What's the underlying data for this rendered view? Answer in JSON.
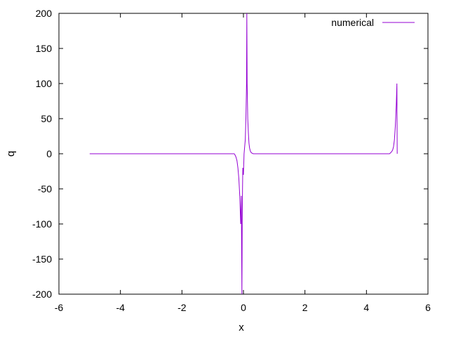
{
  "chart_data": {
    "type": "line",
    "xlabel": "x",
    "ylabel": "q",
    "xlim": [
      -6,
      6
    ],
    "ylim": [
      -200,
      200
    ],
    "x_ticks": [
      -6,
      -4,
      -2,
      0,
      2,
      4,
      6
    ],
    "y_ticks": [
      -200,
      -150,
      -100,
      -50,
      0,
      50,
      100,
      150,
      200
    ],
    "x_tick_labels": [
      "-6",
      "-4",
      "-2",
      "0",
      "2",
      "4",
      "6"
    ],
    "y_tick_labels": [
      "-200",
      "-150",
      "-100",
      "-50",
      "0",
      "50",
      "100",
      "150",
      "200"
    ],
    "grid": false,
    "legend_position": "top-right",
    "series": [
      {
        "name": "numerical",
        "color": "#9400D3",
        "points": [
          [
            -5.0,
            0
          ],
          [
            -0.3,
            0
          ],
          [
            -0.27,
            -2
          ],
          [
            -0.24,
            -5
          ],
          [
            -0.21,
            -10
          ],
          [
            -0.18,
            -20
          ],
          [
            -0.15,
            -35
          ],
          [
            -0.12,
            -60
          ],
          [
            -0.09,
            -100
          ],
          [
            -0.07,
            -60
          ],
          [
            -0.05,
            -200
          ],
          [
            -0.04,
            -100
          ],
          [
            -0.03,
            -50
          ],
          [
            -0.02,
            -20
          ],
          [
            0.0,
            -30
          ],
          [
            0.02,
            0
          ],
          [
            0.04,
            10
          ],
          [
            0.06,
            20
          ],
          [
            0.08,
            50
          ],
          [
            0.1,
            100
          ],
          [
            0.11,
            200
          ],
          [
            0.12,
            100
          ],
          [
            0.14,
            50
          ],
          [
            0.16,
            30
          ],
          [
            0.18,
            15
          ],
          [
            0.2,
            8
          ],
          [
            0.23,
            3
          ],
          [
            0.27,
            1
          ],
          [
            0.32,
            0
          ],
          [
            4.75,
            0
          ],
          [
            4.8,
            2
          ],
          [
            4.85,
            5
          ],
          [
            4.88,
            10
          ],
          [
            4.91,
            20
          ],
          [
            4.94,
            40
          ],
          [
            4.97,
            70
          ],
          [
            4.99,
            100
          ],
          [
            5.0,
            0
          ]
        ]
      }
    ]
  }
}
